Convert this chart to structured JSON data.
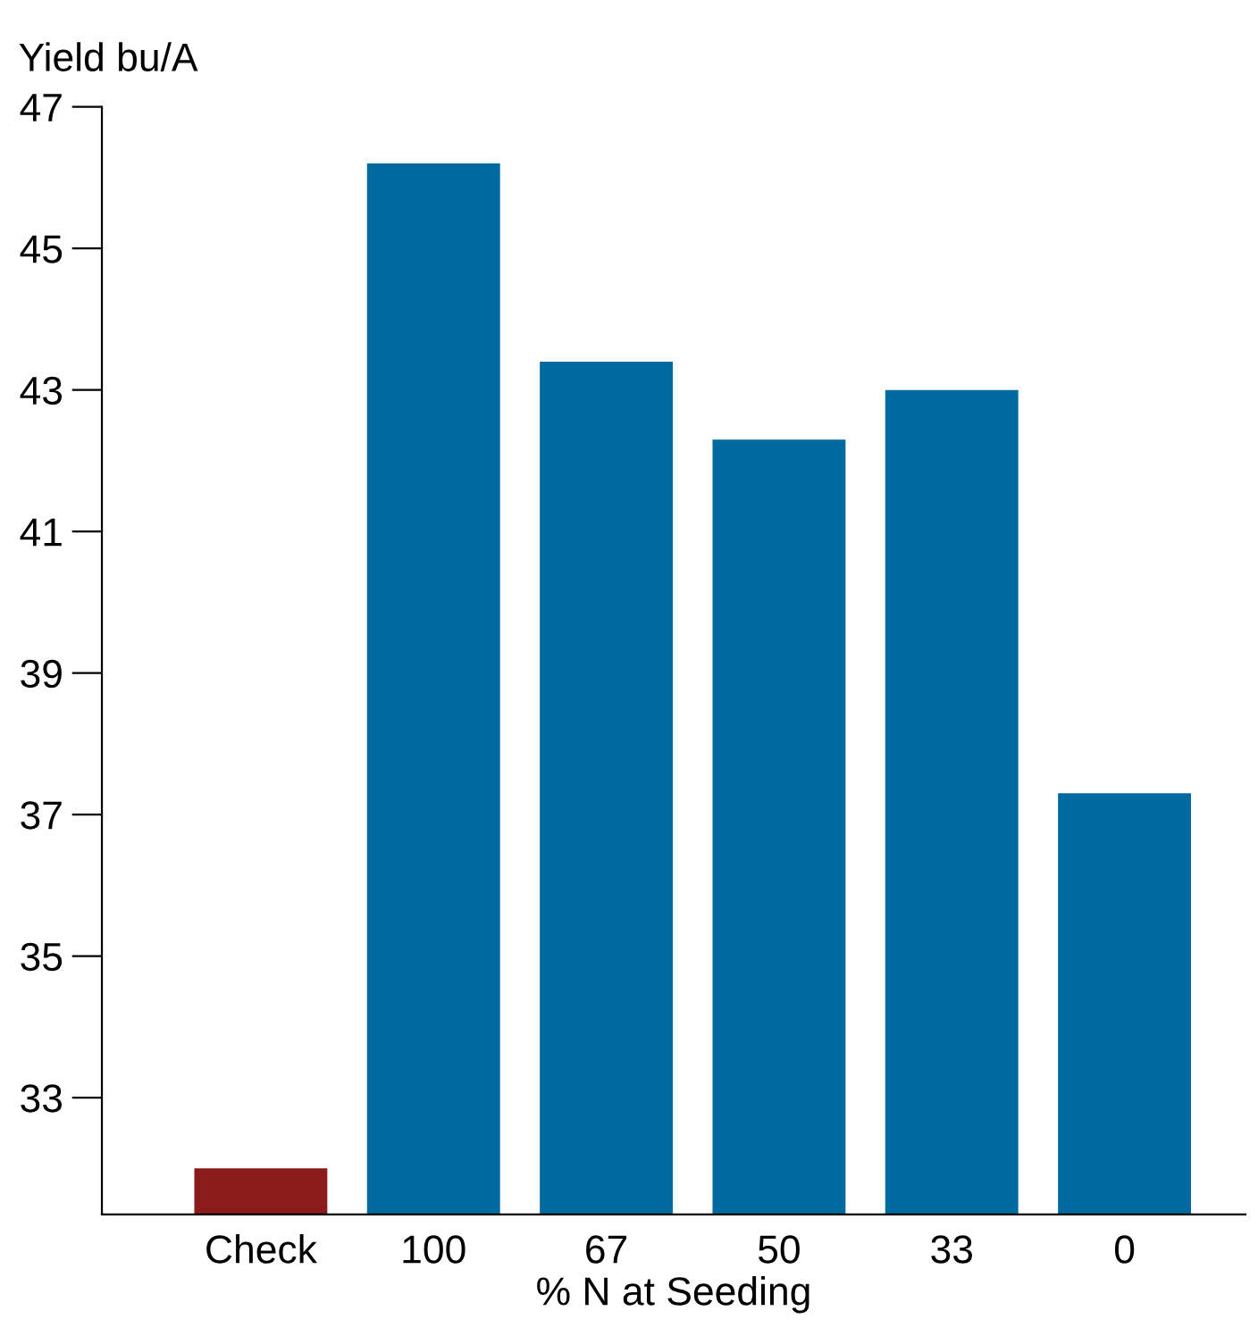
{
  "chart_data": {
    "type": "bar",
    "xlabel": "% N at Seeding",
    "ylabel": "Yield bu/A",
    "categories": [
      "Check",
      "100",
      "67",
      "50",
      "33",
      "0"
    ],
    "values": [
      32.0,
      46.2,
      43.4,
      42.3,
      43.0,
      37.3
    ],
    "colors": [
      "#8b1a1a",
      "#0069a0",
      "#0069a0",
      "#0069a0",
      "#0069a0",
      "#0069a0"
    ],
    "ylim": [
      31.35,
      47
    ],
    "yticks": [
      33,
      35,
      37,
      39,
      41,
      43,
      45,
      47
    ],
    "grid": false
  }
}
